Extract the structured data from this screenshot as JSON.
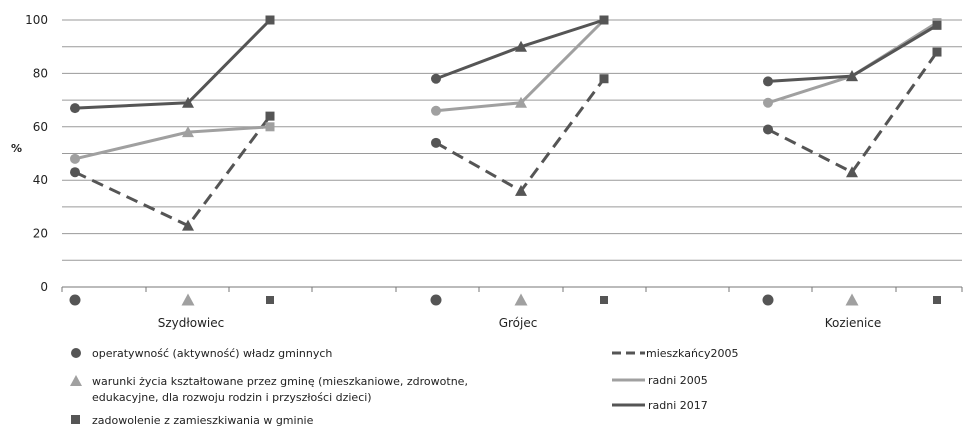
{
  "chart_data": {
    "type": "line",
    "ylabel": "%",
    "ylim": [
      0,
      100
    ],
    "yticks": [
      0,
      20,
      40,
      60,
      80,
      100
    ],
    "grid": true,
    "groups": [
      "Szydłowiec",
      "Grójec",
      "Kozienice"
    ],
    "points": [
      "operatywność (aktywność) władz gminnych",
      "warunki życia kształtowane przez gminę (mieszkaniowe, zdrowotne, edukacyjne, dla rozwoju rodzin i przyszłości dzieci)",
      "zadowolenie z zamieszkiwania w gminie"
    ],
    "point_markers": [
      "circle",
      "triangle",
      "square"
    ],
    "series": [
      {
        "name": "mieszkańcy 2005",
        "style": "dashed",
        "color": "#555555",
        "values": [
          [
            43,
            23,
            64
          ],
          [
            54,
            36,
            78
          ],
          [
            59,
            43,
            88
          ]
        ]
      },
      {
        "name": "radni 2005",
        "style": "solid",
        "color": "#a0a0a0",
        "values": [
          [
            48,
            58,
            60
          ],
          [
            66,
            69,
            100
          ],
          [
            69,
            79,
            99
          ]
        ]
      },
      {
        "name": "radni 2017",
        "style": "solid",
        "color": "#555555",
        "values": [
          [
            67,
            69,
            100
          ],
          [
            78,
            90,
            100
          ],
          [
            77,
            79,
            98
          ]
        ]
      }
    ],
    "legend_markers": {
      "items": [
        "operatywność (aktywność) władz gminnych",
        "warunki życia kształtowane przez gminę (mieszkaniowe, zdrowotne,",
        "edukacyjne, dla rozwoju rodzin i przyszłości dzieci)",
        "zadowolenie z zamieszkiwania w gminie"
      ]
    },
    "legend_lines": [
      "mieszkańcy2005",
      "radni 2005",
      "radni 2017"
    ],
    "colors": {
      "marker": "#555555",
      "marker_light": "#a0a0a0",
      "grid": "#888888"
    }
  }
}
